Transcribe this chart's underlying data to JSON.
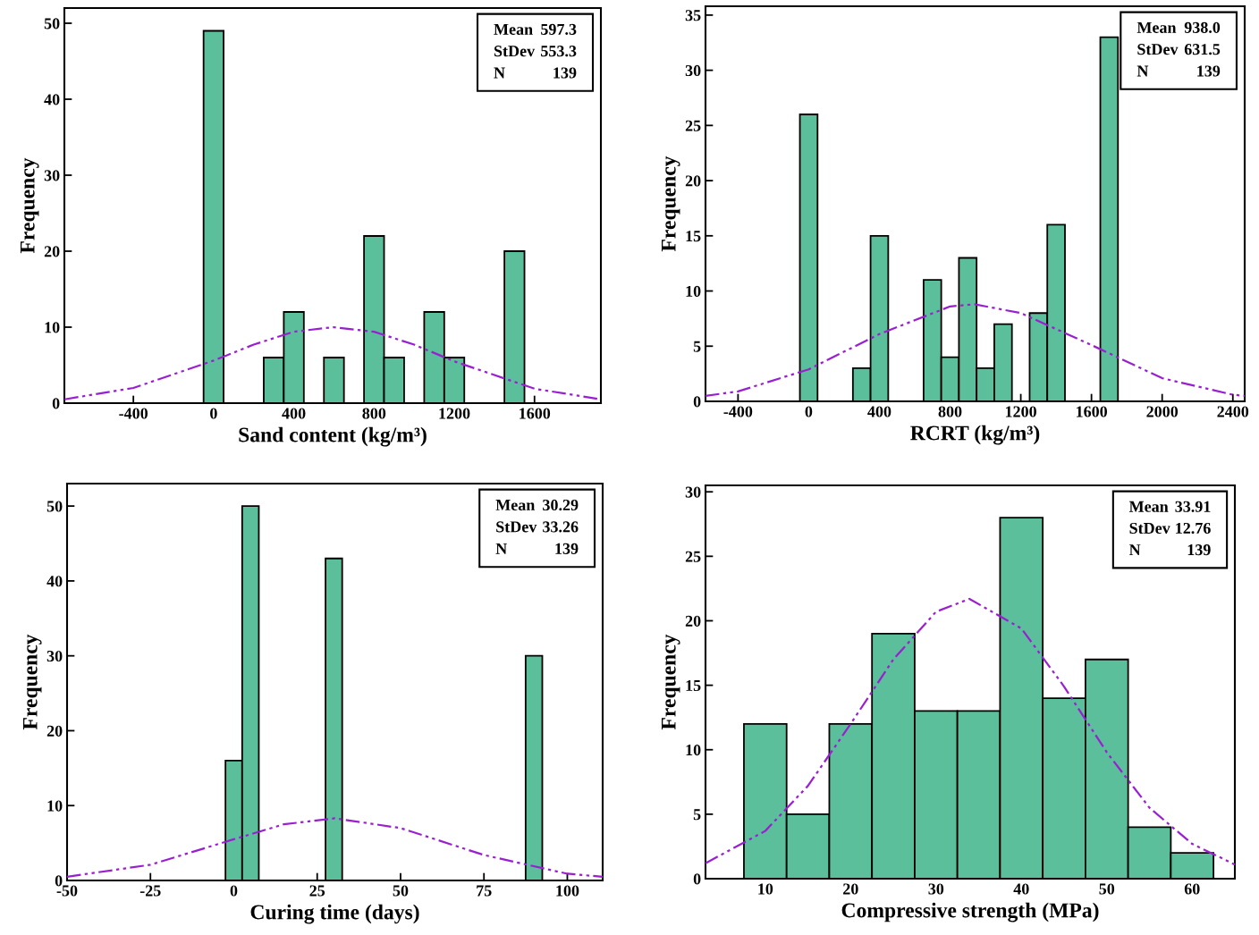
{
  "chart_data": [
    {
      "type": "histogram",
      "xlabel": "Sand content (kg/m³)",
      "ylabel": "Frequency",
      "xlim": [
        -744,
        1931
      ],
      "ylim": [
        0,
        52
      ],
      "xticks": [
        -400,
        0,
        400,
        800,
        1200,
        1600
      ],
      "yticks": [
        0,
        10,
        20,
        30,
        40,
        50
      ],
      "grid": false,
      "legend": false,
      "annotations": [
        "Mean 597.3",
        "StDev 553.3",
        "N 139"
      ],
      "series": [
        {
          "color": "#5bbf9c",
          "bins": [
            -50,
            50,
            150,
            250,
            350,
            450,
            550,
            650,
            750,
            850,
            950,
            1050,
            1150,
            1250,
            1350,
            1450,
            1550
          ],
          "values": [
            49,
            0,
            0,
            6,
            12,
            0,
            6,
            0,
            22,
            6,
            0,
            12,
            6,
            0,
            0,
            20
          ]
        },
        {
          "type": "line",
          "color": "#9a1fd0",
          "line_style": "dashed",
          "marker": "none",
          "x": [
            -743,
            -400,
            0,
            200,
            400,
            597,
            800,
            1000,
            1200,
            1600,
            1931
          ],
          "values": [
            0.5,
            2.0,
            5.6,
            7.7,
            9.4,
            10.0,
            9.4,
            7.7,
            5.5,
            1.9,
            0.5
          ]
        }
      ]
    },
    {
      "type": "histogram",
      "xlabel": "RCRT (kg/m³)",
      "ylabel": "Frequency",
      "xlim": [
        -584,
        2467
      ],
      "ylim": [
        0,
        35.8
      ],
      "xticks": [
        -400,
        0,
        400,
        800,
        1200,
        1600,
        2000,
        2400
      ],
      "yticks": [
        0,
        5,
        10,
        15,
        20,
        25,
        30,
        35
      ],
      "grid": false,
      "legend": false,
      "annotations": [
        "Mean 938.0",
        "StDev 631.5",
        "N 139"
      ],
      "series": [
        {
          "color": "#5bbf9c",
          "bins": [
            -50,
            50,
            150,
            250,
            350,
            450,
            550,
            650,
            750,
            850,
            950,
            1050,
            1150,
            1250,
            1350,
            1450,
            1550,
            1650,
            1750
          ],
          "values": [
            26,
            0,
            0,
            3,
            15,
            0,
            0,
            11,
            4,
            13,
            3,
            7,
            0,
            8,
            16,
            0,
            0,
            33
          ]
        },
        {
          "type": "line",
          "color": "#9a1fd0",
          "line_style": "dashed",
          "marker": "none",
          "x": [
            -584,
            -400,
            0,
            400,
            800,
            938,
            1200,
            1600,
            2000,
            2400,
            2467
          ],
          "values": [
            0.5,
            0.9,
            2.9,
            6.1,
            8.6,
            8.8,
            8.0,
            5.1,
            2.1,
            0.6,
            0.5
          ]
        }
      ]
    },
    {
      "type": "histogram",
      "xlabel": "Curing time (days)",
      "ylabel": "Frequency",
      "xlim": [
        -50,
        110.6
      ],
      "ylim": [
        0,
        53
      ],
      "xticks": [
        -50,
        -25,
        0,
        25,
        50,
        75,
        100
      ],
      "yticks": [
        0,
        10,
        20,
        30,
        40,
        50
      ],
      "grid": false,
      "legend": false,
      "annotations": [
        "Mean 30.29",
        "StDev 33.26",
        "N 139"
      ],
      "series": [
        {
          "color": "#5bbf9c",
          "bins": [
            -2.5,
            2.5,
            7.5,
            12.5,
            17.5,
            22.5,
            27.5,
            32.5,
            37.5,
            42.5,
            47.5,
            52.5,
            57.5,
            62.5,
            67.5,
            72.5,
            77.5,
            82.5,
            87.5,
            92.5
          ],
          "values": [
            16,
            50,
            0,
            0,
            0,
            0,
            43,
            0,
            0,
            0,
            0,
            0,
            0,
            0,
            0,
            0,
            0,
            0,
            30
          ]
        },
        {
          "type": "line",
          "color": "#9a1fd0",
          "line_style": "dashed",
          "marker": "none",
          "x": [
            -50,
            -25,
            0,
            15,
            30.29,
            50,
            75,
            100,
            110.6
          ],
          "values": [
            0.5,
            2.1,
            5.5,
            7.5,
            8.3,
            7.0,
            3.4,
            0.9,
            0.5
          ]
        }
      ]
    },
    {
      "type": "histogram",
      "xlabel": "Compressive strength (MPa)",
      "ylabel": "Frequency",
      "xlim": [
        3,
        65
      ],
      "ylim": [
        0,
        30.5
      ],
      "xticks": [
        10,
        20,
        30,
        40,
        50,
        60
      ],
      "yticks": [
        0,
        5,
        10,
        15,
        20,
        25,
        30
      ],
      "grid": false,
      "legend": false,
      "annotations": [
        "Mean 33.91",
        "StDev 12.76",
        "N 139"
      ],
      "series": [
        {
          "color": "#5bbf9c",
          "bins": [
            7.5,
            12.5,
            17.5,
            22.5,
            27.5,
            32.5,
            37.5,
            42.5,
            47.5,
            52.5,
            57.5,
            62.5
          ],
          "values": [
            12,
            5,
            12,
            19,
            13,
            13,
            28,
            14,
            17,
            4,
            2
          ]
        },
        {
          "type": "line",
          "color": "#9a1fd0",
          "line_style": "dashed",
          "marker": "none",
          "x": [
            3,
            10,
            15,
            20,
            25,
            30,
            33.91,
            40,
            45,
            50,
            55,
            60,
            65
          ],
          "values": [
            1.2,
            3.7,
            7.2,
            12.0,
            17.0,
            20.7,
            21.7,
            19.4,
            14.9,
            9.8,
            5.5,
            2.7,
            1.1
          ]
        }
      ]
    }
  ]
}
